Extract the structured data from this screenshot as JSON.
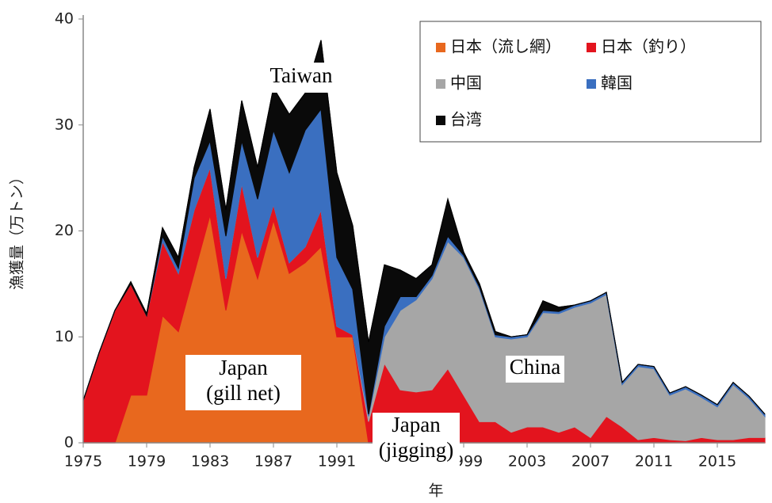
{
  "chart_data": {
    "type": "stacked-area",
    "x": [
      1975,
      1976,
      1977,
      1978,
      1979,
      1980,
      1981,
      1982,
      1983,
      1984,
      1985,
      1986,
      1987,
      1988,
      1989,
      1990,
      1991,
      1992,
      1993,
      1994,
      1995,
      1996,
      1997,
      1998,
      1999,
      2000,
      2001,
      2002,
      2003,
      2004,
      2005,
      2006,
      2007,
      2008,
      2009,
      2010,
      2011,
      2012,
      2013,
      2014,
      2015,
      2016,
      2017,
      2018
    ],
    "series": [
      {
        "name": "日本（流し網）",
        "color": "#e8681e",
        "values": [
          0,
          0,
          0,
          4.5,
          4.5,
          12,
          10.5,
          16,
          21.5,
          12.5,
          20,
          15.5,
          21,
          16,
          17,
          18.5,
          10,
          10,
          0,
          0,
          0,
          0,
          0,
          0,
          0,
          0,
          0,
          0,
          0,
          0,
          0,
          0,
          0,
          0,
          0,
          0,
          0,
          0,
          0,
          0,
          0,
          0,
          0,
          0
        ]
      },
      {
        "name": "日本（釣り）",
        "color": "#e3141e",
        "values": [
          4,
          8.5,
          12.5,
          10.5,
          7.5,
          7,
          5.5,
          6,
          4.5,
          3,
          4.5,
          2,
          1.5,
          1,
          1.5,
          3.5,
          1,
          0.2,
          2,
          7.5,
          5,
          4.8,
          5,
          7,
          4.5,
          2,
          2,
          1,
          1.5,
          1.5,
          1,
          1.5,
          0.5,
          2.5,
          1.5,
          0.3,
          0.5,
          0.3,
          0.2,
          0.5,
          0.3,
          0.3,
          0.5,
          0.5
        ]
      },
      {
        "name": "中国",
        "color": "#a6a6a6",
        "values": [
          0,
          0,
          0,
          0,
          0,
          0,
          0,
          0,
          0,
          0,
          0,
          0,
          0,
          0,
          0,
          0,
          0,
          0,
          0.5,
          2.5,
          7.5,
          8.7,
          10.5,
          12,
          13,
          12.5,
          8,
          8.8,
          8.5,
          10.8,
          11.2,
          11.3,
          12.7,
          11.5,
          4,
          6.9,
          6.5,
          4.2,
          4.9,
          3.8,
          3.1,
          5.2,
          3.7,
          2
        ]
      },
      {
        "name": "韓国",
        "color": "#3a6fc0",
        "values": [
          0,
          0,
          0,
          0,
          0,
          0.5,
          0.5,
          3,
          2.5,
          4,
          4,
          5.5,
          7,
          8.5,
          11,
          9.5,
          6.5,
          4.3,
          0.2,
          1,
          1.3,
          0.3,
          0.3,
          0.5,
          0.2,
          0.2,
          0.2,
          0.2,
          0.2,
          0.2,
          0.2,
          0.2,
          0.2,
          0.2,
          0.2,
          0.2,
          0.2,
          0.2,
          0.2,
          0.2,
          0.2,
          0.2,
          0.2,
          0.2
        ]
      },
      {
        "name": "台湾",
        "color": "#0a0a0a",
        "values": [
          0,
          0,
          0,
          0.2,
          0.2,
          0.8,
          1,
          1,
          3,
          2.5,
          3.8,
          3,
          4,
          5.5,
          3.5,
          6.5,
          8,
          6,
          6.8,
          5.8,
          2.5,
          1.7,
          1,
          3.5,
          0.3,
          0.3,
          0.3,
          0,
          0,
          0.9,
          0.4,
          0,
          0,
          0,
          0,
          0,
          0,
          0,
          0,
          0,
          0,
          0,
          0,
          0
        ]
      }
    ],
    "xlim": [
      1975,
      2018
    ],
    "xticks": [
      1975,
      1979,
      1983,
      1987,
      1991,
      1995,
      1999,
      2003,
      2007,
      2011,
      2015
    ],
    "ylim": [
      0,
      40
    ],
    "yticks": [
      0,
      10,
      20,
      30,
      40
    ],
    "x_label": "年",
    "y_label": "漁獲量（万トン）",
    "legend": "upper right",
    "annotations": [
      {
        "lines": [
          "Taiwan"
        ]
      },
      {
        "lines": [
          "Japan",
          "(gill net)"
        ]
      },
      {
        "lines": [
          "China"
        ]
      },
      {
        "lines": [
          "Japan",
          "(jigging)"
        ]
      }
    ]
  }
}
